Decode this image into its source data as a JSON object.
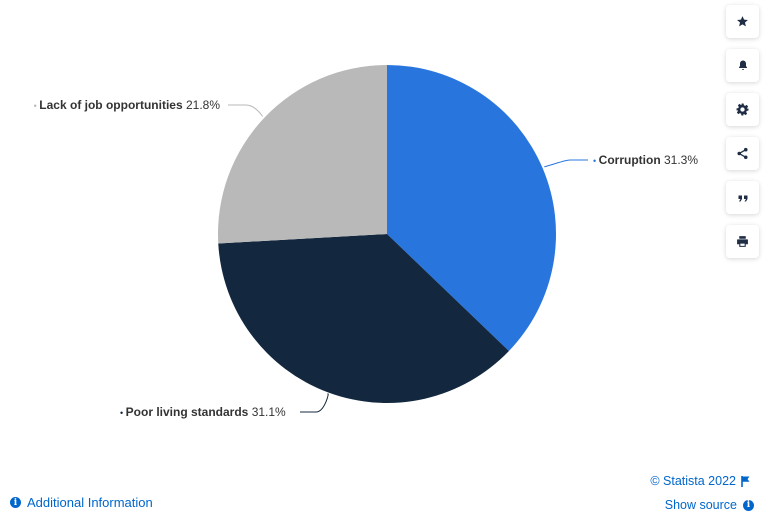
{
  "chart_data": {
    "type": "pie",
    "slices": [
      {
        "label": "Corruption",
        "value": 31.3,
        "value_text": "31.3%",
        "color": "#2876dd"
      },
      {
        "label": "Poor living standards",
        "value": 31.1,
        "value_text": "31.1%",
        "color": "#13283f"
      },
      {
        "label": "Lack of job opportunities",
        "value": 21.8,
        "value_text": "21.8%",
        "color": "#b9b9b9"
      }
    ],
    "start_angle": "12 o'clock",
    "direction": "clockwise",
    "legend": "none"
  },
  "toolbar": {
    "buttons": [
      {
        "name": "favorite-button",
        "icon": "star-icon"
      },
      {
        "name": "notification-button",
        "icon": "bell-icon"
      },
      {
        "name": "settings-button",
        "icon": "gear-icon"
      },
      {
        "name": "share-button",
        "icon": "share-icon"
      },
      {
        "name": "cite-button",
        "icon": "quote-icon"
      },
      {
        "name": "print-button",
        "icon": "printer-icon"
      }
    ]
  },
  "footer": {
    "additional_info": "Additional Information",
    "credit": "© Statista 2022",
    "show_source": "Show source"
  },
  "colors": {
    "accent": "#0066cc",
    "label_text": "#333333"
  }
}
